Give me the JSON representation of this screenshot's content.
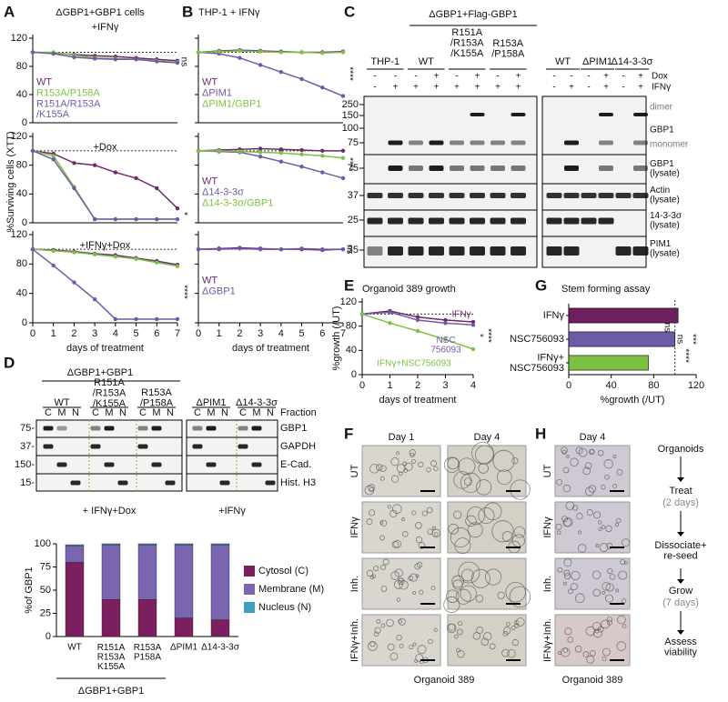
{
  "chart_data": [
    {
      "type": "line",
      "title": "+IFNγ",
      "x": [
        0,
        1,
        2,
        3,
        4,
        5,
        6,
        7
      ],
      "xlim": [
        0,
        7
      ],
      "ylim": [
        0,
        120
      ],
      "yticks": [
        0,
        40,
        80,
        120
      ],
      "ref_line": 100,
      "annotations": [
        "ns"
      ],
      "series": [
        {
          "name": "WT",
          "color": "#6e2a6e",
          "values": [
            100,
            99,
            97,
            95,
            94,
            92,
            90,
            88
          ]
        },
        {
          "name": "R153A/P158A",
          "color": "#7cc242",
          "values": [
            100,
            100,
            96,
            92,
            91,
            90,
            88,
            86
          ]
        },
        {
          "name": "R151A/R153A\n/K155A",
          "color": "#6f5aa8",
          "values": [
            100,
            98,
            93,
            91,
            90,
            90,
            87,
            85
          ]
        }
      ]
    },
    {
      "type": "line",
      "title": "+Dox",
      "x": [
        0,
        1,
        2,
        3,
        4,
        5,
        6,
        7
      ],
      "xlim": [
        0,
        7
      ],
      "ylim": [
        0,
        120
      ],
      "yticks": [
        0,
        40,
        80,
        120
      ],
      "ref_line": 100,
      "annotations": [
        "*"
      ],
      "series": [
        {
          "color": "#6e2a6e",
          "values": [
            100,
            96,
            83,
            80,
            70,
            62,
            48,
            20
          ]
        },
        {
          "color": "#7cc242",
          "values": [
            100,
            93,
            50,
            5,
            5,
            5,
            5,
            5
          ]
        },
        {
          "color": "#6f5aa8",
          "values": [
            100,
            88,
            48,
            5,
            5,
            5,
            5,
            5
          ]
        }
      ]
    },
    {
      "type": "line",
      "title": "+IFNγ+Dox",
      "x": [
        0,
        1,
        2,
        3,
        4,
        5,
        6,
        7
      ],
      "xlim": [
        0,
        7
      ],
      "ylim": [
        0,
        120
      ],
      "yticks": [
        0,
        40,
        80,
        120
      ],
      "xticks": [
        0,
        1,
        2,
        3,
        4,
        5,
        6,
        7
      ],
      "xlabel": "days of treatment",
      "ref_line": 100,
      "annotations": [
        "****"
      ],
      "series": [
        {
          "color": "#6e2a6e",
          "values": [
            100,
            99,
            97,
            94,
            92,
            88,
            84,
            79
          ]
        },
        {
          "color": "#7cc242",
          "values": [
            100,
            98,
            96,
            93,
            90,
            87,
            82,
            77
          ]
        },
        {
          "color": "#6f5aa8",
          "values": [
            100,
            78,
            55,
            32,
            5,
            5,
            5,
            5
          ]
        }
      ]
    },
    {
      "type": "line",
      "title": "THP-1 + IFNγ",
      "x": [
        0,
        1,
        2,
        3,
        4,
        5,
        6,
        7
      ],
      "xlim": [
        0,
        7
      ],
      "ylim": [
        0,
        120
      ],
      "yticks": [
        0,
        40,
        80,
        120
      ],
      "ytick_labels": false,
      "ref_line": 100,
      "annotations": [
        "****"
      ],
      "series": [
        {
          "name": "WT",
          "color": "#6e2a6e",
          "values": [
            100,
            102,
            103,
            102,
            101,
            100,
            100,
            101
          ]
        },
        {
          "name": "ΔPIM1",
          "color": "#6f5aa8",
          "values": [
            100,
            98,
            92,
            82,
            72,
            62,
            50,
            38
          ]
        },
        {
          "name": "ΔPIM1/GBP1",
          "color": "#7cc242",
          "values": [
            100,
            101,
            102,
            101,
            100,
            100,
            99,
            100
          ]
        }
      ]
    },
    {
      "type": "line",
      "x": [
        0,
        1,
        2,
        3,
        4,
        5,
        6,
        7
      ],
      "xlim": [
        0,
        7
      ],
      "ylim": [
        0,
        120
      ],
      "yticks": [
        0,
        40,
        80,
        120
      ],
      "ytick_labels": false,
      "ref_line": 100,
      "annotations": [
        "****"
      ],
      "series": [
        {
          "name": "WT",
          "color": "#6e2a6e",
          "values": [
            100,
            101,
            102,
            103,
            102,
            101,
            100,
            100
          ]
        },
        {
          "name": "Δ14-3-3σ",
          "color": "#6f5aa8",
          "values": [
            100,
            99,
            98,
            92,
            85,
            78,
            70,
            62
          ]
        },
        {
          "name": "Δ14-3-3σ/GBP1",
          "color": "#7cc242",
          "values": [
            100,
            100,
            99,
            98,
            97,
            95,
            93,
            90
          ]
        }
      ]
    },
    {
      "type": "line",
      "x": [
        0,
        1,
        2,
        3,
        4,
        5,
        6,
        7
      ],
      "xlim": [
        0,
        7
      ],
      "ylim": [
        0,
        120
      ],
      "yticks": [
        0,
        40,
        80,
        120
      ],
      "ytick_labels": false,
      "xticks": [
        0,
        1,
        2,
        3,
        4,
        5,
        6,
        7
      ],
      "xlabel": "days of treatment",
      "ref_line": 100,
      "annotations": [
        "ns"
      ],
      "series": [
        {
          "name": "WT",
          "color": "#6e2a6e",
          "values": [
            100,
            101,
            102,
            101,
            100,
            100,
            99,
            100
          ]
        },
        {
          "name": "ΔGBP1",
          "color": "#6f5aa8",
          "values": [
            100,
            100,
            101,
            100,
            100,
            101,
            100,
            100
          ]
        }
      ]
    },
    {
      "type": "line",
      "title": "Organoid 389 growth",
      "x": [
        0,
        1,
        2,
        3,
        4
      ],
      "xlim": [
        0,
        4
      ],
      "ylim": [
        0,
        120
      ],
      "yticks": [
        0,
        40,
        80,
        120
      ],
      "xticks": [
        0,
        1,
        2,
        3,
        4
      ],
      "xlabel": "days of treatment",
      "ylabel": "%growth (/UT)",
      "ref_line": 100,
      "legend": "inline",
      "annotations": [
        "*",
        "****"
      ],
      "series": [
        {
          "name": "IFNγ",
          "color": "#6e2a6e",
          "values": [
            100,
            105,
            95,
            90,
            87
          ]
        },
        {
          "name": "NSC\n756093",
          "color": "#6f5aa8",
          "values": [
            100,
            103,
            90,
            85,
            82
          ]
        },
        {
          "name": "IFNγ+NSC756093",
          "color": "#7cc242",
          "values": [
            100,
            85,
            72,
            58,
            42
          ]
        }
      ]
    },
    {
      "type": "hbar",
      "title": "Stem forming assay",
      "categories": [
        "IFNγ",
        "NSC756093",
        "IFNγ+\nNSC756093"
      ],
      "values": [
        103,
        100,
        75
      ],
      "colors": [
        "#6e1f5f",
        "#6f5aa8",
        "#7cc242"
      ],
      "xlim": [
        0,
        120
      ],
      "xticks": [
        0,
        40,
        80,
        120
      ],
      "xlabel": "%growth (/UT)",
      "ref_line": 100,
      "annotations": [
        "ns",
        "ns",
        "***",
        "****"
      ]
    },
    {
      "type": "stacked_bar",
      "categories": [
        "WT",
        "R151A\nR153A\nK155A",
        "R153A\nP158A",
        "ΔPIM1",
        "Δ14-3-3σ"
      ],
      "ylim": [
        0,
        100
      ],
      "yticks": [
        0,
        25,
        50,
        75,
        100
      ],
      "ylabel": "%of GBP1",
      "legend": "right",
      "series": [
        {
          "name": "Cytosol (C)",
          "color": "#7b1f5e",
          "values": [
            80,
            40,
            40,
            20,
            18
          ]
        },
        {
          "name": "Membrane (M)",
          "color": "#7a65b0",
          "values": [
            18,
            59,
            59,
            79,
            81
          ]
        },
        {
          "name": "Nucleus (N)",
          "color": "#3e9fbf",
          "values": [
            1,
            1,
            1,
            1,
            1
          ]
        }
      ]
    }
  ],
  "panels": {
    "letters": [
      "A",
      "B",
      "C",
      "D",
      "E",
      "F",
      "G",
      "H"
    ],
    "A": {
      "header": "ΔGBP1+GBP1 cells",
      "ylabel": "%Surviving cells (XTT)"
    },
    "C": {
      "header": "ΔGBP1+Flag-GBP1",
      "groups": [
        "THP-1",
        "WT",
        "R151A\n/R153A\n/K155A",
        "R153A\n/P158A",
        "WT",
        "ΔPIM1",
        "Δ14-3-3σ"
      ],
      "rows": [
        "Dox",
        "IFNγ"
      ],
      "dox": [
        "-",
        "-",
        "-",
        "+",
        "-",
        "+",
        "-",
        "+",
        "-",
        "-",
        "-",
        "+",
        "-",
        "+"
      ],
      "ifng": [
        "-",
        "+",
        "+",
        "+",
        "+",
        "+",
        "+",
        "+",
        "-",
        "+",
        "-",
        "+",
        "-",
        "+"
      ],
      "markers": [
        "250",
        "150",
        "100",
        "75",
        "75",
        "37",
        "25",
        "35"
      ],
      "labels": [
        "dimer",
        "GBP1",
        "monomer",
        "GBP1\n(lysate)",
        "Actin\n(lysate)",
        "14-3-3σ\n(lysate)",
        "PIM1\n(lysate)"
      ]
    },
    "D": {
      "header": "ΔGBP1+GBP1",
      "groups": [
        "WT",
        "R151A\n/R153A\n/K155A",
        "R153A\n/P158A",
        "ΔPIM1",
        "Δ14-3-3σ"
      ],
      "fraction": "Fraction",
      "lanes": [
        "C",
        "M",
        "N"
      ],
      "rows": [
        "GBP1",
        "GAPDH",
        "E-Cad.",
        "Hist. H3"
      ],
      "markers": [
        "75-",
        "37-",
        "150-",
        "15-"
      ],
      "treatments": [
        "+ IFNγ+Dox",
        "+IFNγ"
      ]
    },
    "F": {
      "days": [
        "Day 1",
        "Day 4"
      ],
      "rows": [
        "UT",
        "IFNγ",
        "Inh.",
        "IFNγ+Inh."
      ],
      "footer": "Organoid 389"
    },
    "H": {
      "day": "Day 4",
      "steps": [
        "Organoids",
        "Treat",
        "(2 days)",
        "Dissociate+\nre-seed",
        "Grow",
        "(7 days)",
        "Assess\nviability"
      ]
    }
  }
}
